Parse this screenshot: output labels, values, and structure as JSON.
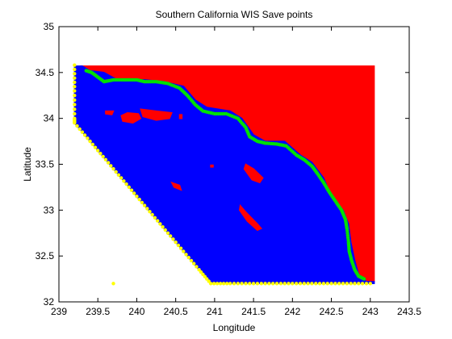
{
  "chart_data": {
    "type": "scatter",
    "title": "Southern California WIS Save points",
    "xlabel": "Longitude",
    "ylabel": "Latitude",
    "xlim": [
      239,
      243.5
    ],
    "ylim": [
      32,
      35
    ],
    "xticks": [
      "239",
      "239.5",
      "240",
      "240.5",
      "241",
      "241.5",
      "242",
      "242.5",
      "243",
      "243.5"
    ],
    "yticks": [
      "32",
      "32.5",
      "33",
      "33.5",
      "34",
      "34.5",
      "35"
    ],
    "grid": false,
    "legend": "none",
    "colors": {
      "land": "#ff0000",
      "water": "#0000ff",
      "save_points": "#00e000",
      "boundary": "#ffff00",
      "axes": "#000000",
      "background": "#ffffff"
    },
    "regions": [
      {
        "class": "land",
        "polygon": [
          [
            239.3,
            34.57
          ],
          [
            243.05,
            34.57
          ],
          [
            243.05,
            32.22
          ],
          [
            242.95,
            32.22
          ],
          [
            242.85,
            32.3
          ],
          [
            242.8,
            32.45
          ],
          [
            242.75,
            32.65
          ],
          [
            242.72,
            32.85
          ],
          [
            242.65,
            33.0
          ],
          [
            242.5,
            33.15
          ],
          [
            242.4,
            33.35
          ],
          [
            242.25,
            33.52
          ],
          [
            242.1,
            33.6
          ],
          [
            241.9,
            33.75
          ],
          [
            241.65,
            33.75
          ],
          [
            241.5,
            33.82
          ],
          [
            241.35,
            34.0
          ],
          [
            241.2,
            34.08
          ],
          [
            240.9,
            34.12
          ],
          [
            240.75,
            34.2
          ],
          [
            240.6,
            34.35
          ],
          [
            240.35,
            34.4
          ],
          [
            240.1,
            34.42
          ],
          [
            239.75,
            34.42
          ],
          [
            239.58,
            34.5
          ],
          [
            239.4,
            34.52
          ]
        ]
      },
      {
        "class": "water",
        "polygon": [
          [
            239.2,
            34.57
          ],
          [
            239.3,
            34.57
          ],
          [
            239.4,
            34.52
          ],
          [
            239.58,
            34.5
          ],
          [
            239.75,
            34.42
          ],
          [
            240.1,
            34.42
          ],
          [
            240.35,
            34.4
          ],
          [
            240.6,
            34.35
          ],
          [
            240.75,
            34.2
          ],
          [
            240.9,
            34.12
          ],
          [
            241.2,
            34.08
          ],
          [
            241.35,
            34.0
          ],
          [
            241.5,
            33.82
          ],
          [
            241.65,
            33.75
          ],
          [
            241.9,
            33.75
          ],
          [
            242.1,
            33.6
          ],
          [
            242.25,
            33.52
          ],
          [
            242.4,
            33.35
          ],
          [
            242.5,
            33.15
          ],
          [
            242.65,
            33.0
          ],
          [
            242.72,
            32.85
          ],
          [
            242.75,
            32.65
          ],
          [
            242.8,
            32.45
          ],
          [
            242.85,
            32.3
          ],
          [
            242.95,
            32.22
          ],
          [
            243.05,
            32.22
          ],
          [
            243.05,
            32.2
          ],
          [
            240.95,
            32.2
          ],
          [
            239.2,
            33.95
          ]
        ]
      },
      {
        "class": "land",
        "polygon": [
          [
            239.8,
            34.03
          ],
          [
            239.88,
            34.06
          ],
          [
            240.02,
            34.05
          ],
          [
            240.05,
            34.0
          ],
          [
            239.95,
            33.95
          ],
          [
            239.82,
            33.97
          ]
        ]
      },
      {
        "class": "land",
        "polygon": [
          [
            240.05,
            34.1
          ],
          [
            240.25,
            34.08
          ],
          [
            240.45,
            34.06
          ],
          [
            240.42,
            34.0
          ],
          [
            240.25,
            33.98
          ],
          [
            240.08,
            34.02
          ]
        ]
      },
      {
        "class": "land",
        "polygon": [
          [
            239.6,
            34.08
          ],
          [
            239.7,
            34.08
          ],
          [
            239.68,
            34.04
          ],
          [
            239.6,
            34.05
          ]
        ]
      },
      {
        "class": "land",
        "polygon": [
          [
            241.4,
            33.5
          ],
          [
            241.5,
            33.45
          ],
          [
            241.62,
            33.35
          ],
          [
            241.58,
            33.3
          ],
          [
            241.48,
            33.33
          ],
          [
            241.38,
            33.45
          ]
        ]
      },
      {
        "class": "land",
        "polygon": [
          [
            241.33,
            33.05
          ],
          [
            241.4,
            32.98
          ],
          [
            241.55,
            32.85
          ],
          [
            241.6,
            32.8
          ],
          [
            241.55,
            32.78
          ],
          [
            241.42,
            32.88
          ],
          [
            241.32,
            33.0
          ]
        ]
      },
      {
        "class": "land",
        "polygon": [
          [
            240.45,
            33.3
          ],
          [
            240.55,
            33.27
          ],
          [
            240.57,
            33.22
          ],
          [
            240.48,
            33.25
          ]
        ]
      },
      {
        "class": "land",
        "polygon": [
          [
            240.95,
            33.49
          ],
          [
            240.98,
            33.49
          ],
          [
            240.98,
            33.47
          ],
          [
            240.95,
            33.47
          ]
        ]
      },
      {
        "class": "land",
        "polygon": [
          [
            240.55,
            34.04
          ],
          [
            240.58,
            34.04
          ],
          [
            240.58,
            34.0
          ],
          [
            240.55,
            34.0
          ]
        ]
      }
    ],
    "series": [
      {
        "name": "",
        "class": "save_points",
        "points": [
          [
            239.35,
            34.52
          ],
          [
            239.42,
            34.5
          ],
          [
            239.5,
            34.45
          ],
          [
            239.58,
            34.4
          ],
          [
            239.7,
            34.42
          ],
          [
            239.85,
            34.42
          ],
          [
            240.0,
            34.42
          ],
          [
            240.1,
            34.4
          ],
          [
            240.25,
            34.4
          ],
          [
            240.4,
            34.38
          ],
          [
            240.55,
            34.33
          ],
          [
            240.65,
            34.25
          ],
          [
            240.75,
            34.15
          ],
          [
            240.85,
            34.08
          ],
          [
            241.0,
            34.05
          ],
          [
            241.15,
            34.05
          ],
          [
            241.3,
            34.0
          ],
          [
            241.4,
            33.9
          ],
          [
            241.45,
            33.8
          ],
          [
            241.55,
            33.75
          ],
          [
            241.65,
            33.73
          ],
          [
            241.8,
            33.72
          ],
          [
            241.92,
            33.7
          ],
          [
            242.05,
            33.6
          ],
          [
            242.15,
            33.55
          ],
          [
            242.25,
            33.48
          ],
          [
            242.32,
            33.4
          ],
          [
            242.4,
            33.3
          ],
          [
            242.47,
            33.2
          ],
          [
            242.55,
            33.1
          ],
          [
            242.63,
            33.0
          ],
          [
            242.68,
            32.9
          ],
          [
            242.7,
            32.8
          ],
          [
            242.72,
            32.65
          ],
          [
            242.73,
            32.55
          ],
          [
            242.76,
            32.45
          ],
          [
            242.8,
            32.35
          ],
          [
            242.85,
            32.28
          ],
          [
            242.92,
            32.25
          ]
        ]
      },
      {
        "name": "",
        "class": "boundary",
        "points": [
          [
            239.2,
            34.58
          ],
          [
            239.2,
            34.3
          ],
          [
            239.2,
            34.0
          ],
          [
            239.2,
            33.95
          ],
          [
            239.4,
            33.75
          ],
          [
            239.6,
            33.55
          ],
          [
            239.8,
            33.35
          ],
          [
            240.0,
            33.15
          ],
          [
            240.2,
            32.95
          ],
          [
            240.4,
            32.75
          ],
          [
            240.6,
            32.55
          ],
          [
            240.8,
            32.35
          ],
          [
            240.95,
            32.2
          ],
          [
            241.2,
            32.2
          ],
          [
            241.5,
            32.2
          ],
          [
            241.8,
            32.2
          ],
          [
            242.1,
            32.2
          ],
          [
            242.4,
            32.2
          ],
          [
            242.7,
            32.2
          ],
          [
            243.0,
            32.2
          ],
          [
            239.7,
            32.2
          ]
        ]
      }
    ]
  }
}
